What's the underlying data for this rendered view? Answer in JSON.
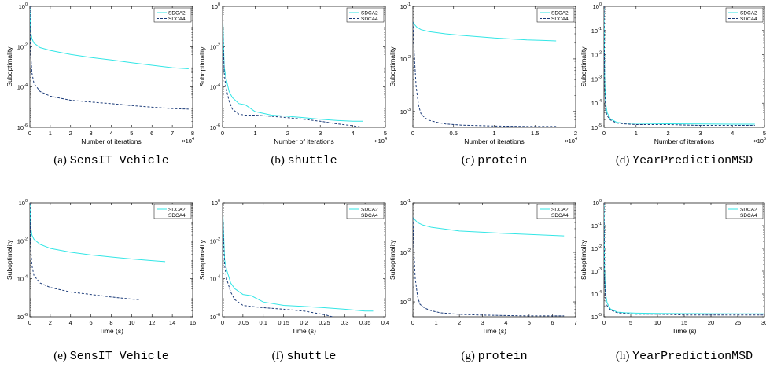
{
  "colors": {
    "sdca2": "#33e6e6",
    "sdca4": "#1a3a78",
    "axis": "#000000"
  },
  "legend": {
    "placement": "top-right"
  },
  "chart_data": [
    {
      "type": "line",
      "caption_label": "(a)",
      "caption_dataset": "SensIT Vehicle",
      "xlabel": "Number of iterations",
      "ylabel": "Suboptimality",
      "xscale": "linear",
      "yscale": "log",
      "xlim": [
        0,
        80000
      ],
      "ylim": [
        1e-06,
        1
      ],
      "xticks": [
        0,
        10000,
        20000,
        30000,
        40000,
        50000,
        60000,
        70000,
        80000
      ],
      "xtick_labels": [
        "0",
        "1",
        "2",
        "3",
        "4",
        "5",
        "6",
        "7",
        "8"
      ],
      "x_multiplier": "×10^4",
      "x_multiplier_base": "×10",
      "x_multiplier_exp": "4",
      "yticks": [
        1e-06,
        0.0001,
        0.01,
        1
      ],
      "ytick_exps": [
        "-6",
        "-4",
        "-2",
        "0"
      ],
      "series": [
        {
          "name": "SDCA2",
          "style": "solid",
          "x": [
            0,
            200,
            500,
            1000,
            2000,
            5000,
            10000,
            20000,
            30000,
            40000,
            50000,
            60000,
            70000,
            78000
          ],
          "y": [
            1,
            0.15,
            0.05,
            0.025,
            0.015,
            0.009,
            0.0065,
            0.0041,
            0.0029,
            0.0022,
            0.0016,
            0.0012,
            0.0009,
            0.0008
          ]
        },
        {
          "name": "SDCA4",
          "style": "dashed",
          "x": [
            0,
            200,
            500,
            1000,
            2000,
            5000,
            10000,
            20000,
            30000,
            40000,
            50000,
            60000,
            70000,
            78000
          ],
          "y": [
            1,
            0.02,
            0.003,
            0.0005,
            0.00015,
            6e-05,
            3.5e-05,
            2.2e-05,
            1.8e-05,
            1.5e-05,
            1.2e-05,
            1e-05,
            8.5e-06,
            8e-06
          ]
        }
      ]
    },
    {
      "type": "line",
      "caption_label": "(b)",
      "caption_dataset": "shuttle",
      "xlabel": "Number of iterations",
      "ylabel": "Suboptimality",
      "xscale": "linear",
      "yscale": "log",
      "xlim": [
        0,
        50000
      ],
      "ylim": [
        1e-06,
        1
      ],
      "xticks": [
        0,
        10000,
        20000,
        30000,
        40000,
        50000
      ],
      "xtick_labels": [
        "0",
        "1",
        "2",
        "3",
        "4",
        "5"
      ],
      "x_multiplier": "×10^4",
      "x_multiplier_base": "×10",
      "x_multiplier_exp": "4",
      "yticks": [
        1e-06,
        0.0001,
        0.01,
        1
      ],
      "ytick_exps": [
        "-6",
        "-4",
        "-2",
        "0"
      ],
      "series": [
        {
          "name": "SDCA2",
          "style": "solid",
          "x": [
            0,
            200,
            500,
            1000,
            2000,
            3000,
            5000,
            7000,
            10000,
            15000,
            20000,
            25000,
            30000,
            35000,
            40000,
            43000
          ],
          "y": [
            1,
            0.05,
            0.001,
            0.0003,
            6e-05,
            3e-05,
            1.5e-05,
            1.3e-05,
            6e-06,
            4e-06,
            3.5e-06,
            3e-06,
            2.5e-06,
            2.2e-06,
            2e-06,
            2e-06
          ]
        },
        {
          "name": "SDCA4",
          "style": "dashed",
          "x": [
            0,
            200,
            500,
            1000,
            2000,
            3000,
            5000,
            7000,
            10000,
            15000,
            20000,
            25000,
            30000,
            35000,
            40000,
            43000
          ],
          "y": [
            1,
            0.02,
            0.0005,
            0.0001,
            2e-05,
            8e-06,
            4.5e-06,
            4e-06,
            4e-06,
            3.5e-06,
            3e-06,
            2.5e-06,
            2e-06,
            1.5e-06,
            1.2e-06,
            1e-06
          ]
        }
      ]
    },
    {
      "type": "line",
      "caption_label": "(c)",
      "caption_dataset": "protein",
      "xlabel": "Number of iterations",
      "ylabel": "Suboptimality",
      "xscale": "linear",
      "yscale": "log",
      "xlim": [
        0,
        20000
      ],
      "ylim": [
        0.0005,
        0.1
      ],
      "xticks": [
        0,
        5000,
        10000,
        15000,
        20000
      ],
      "xtick_labels": [
        "0",
        "0.5",
        "1",
        "1.5",
        "2"
      ],
      "x_multiplier": "×10^4",
      "x_multiplier_base": "×10",
      "x_multiplier_exp": "4",
      "yticks": [
        0.001,
        0.01,
        0.1
      ],
      "ytick_exps": [
        "-3",
        "-2",
        "-1"
      ],
      "series": [
        {
          "name": "SDCA2",
          "style": "solid",
          "x": [
            0,
            200,
            500,
            1000,
            2000,
            4000,
            6000,
            8000,
            10000,
            12000,
            14000,
            16000,
            17600
          ],
          "y": [
            0.05,
            0.045,
            0.04,
            0.036,
            0.033,
            0.03,
            0.028,
            0.0265,
            0.025,
            0.024,
            0.023,
            0.0225,
            0.022
          ]
        },
        {
          "name": "SDCA4",
          "style": "dashed",
          "x": [
            0,
            200,
            400,
            700,
            1000,
            1500,
            2000,
            3000,
            4000,
            6000,
            8000,
            10000,
            14000,
            17600
          ],
          "y": [
            0.05,
            0.01,
            0.003,
            0.0013,
            0.0009,
            0.00075,
            0.00068,
            0.00062,
            0.00058,
            0.00055,
            0.00054,
            0.00053,
            0.00052,
            0.00052
          ]
        }
      ]
    },
    {
      "type": "line",
      "caption_label": "(d)",
      "caption_dataset": "YearPredictionMSD",
      "xlabel": "Number of iterations",
      "ylabel": "Suboptimality",
      "xscale": "linear",
      "yscale": "log",
      "xlim": [
        0,
        500000
      ],
      "ylim": [
        1e-05,
        1
      ],
      "xticks": [
        0,
        100000,
        200000,
        300000,
        400000,
        500000
      ],
      "xtick_labels": [
        "0",
        "1",
        "2",
        "3",
        "4",
        "5"
      ],
      "x_multiplier": "×10^5",
      "x_multiplier_base": "×10",
      "x_multiplier_exp": "5",
      "yticks": [
        1e-05,
        0.0001,
        0.001,
        0.01,
        0.1,
        1
      ],
      "ytick_exps": [
        "-5",
        "-4",
        "-3",
        "-2",
        "-1",
        "0"
      ],
      "series": [
        {
          "name": "SDCA2",
          "style": "solid",
          "x": [
            0,
            2000,
            5000,
            10000,
            20000,
            40000,
            60000,
            100000,
            200000,
            300000,
            400000,
            470000
          ],
          "y": [
            1,
            0.001,
            0.0001,
            4e-05,
            2.2e-05,
            1.6e-05,
            1.5e-05,
            1.45e-05,
            1.4e-05,
            1.38e-05,
            1.35e-05,
            1.35e-05
          ]
        },
        {
          "name": "SDCA4",
          "style": "dashed",
          "x": [
            0,
            2000,
            5000,
            10000,
            20000,
            40000,
            60000,
            100000,
            200000,
            300000,
            400000,
            470000
          ],
          "y": [
            1,
            0.0005,
            5e-05,
            3e-05,
            2e-05,
            1.5e-05,
            1.4e-05,
            1.3e-05,
            1.3e-05,
            1.2e-05,
            1.2e-05,
            1.2e-05
          ]
        }
      ]
    },
    {
      "type": "line",
      "caption_label": "(e)",
      "caption_dataset": "SensIT Vehicle",
      "xlabel": "Time (s)",
      "ylabel": "Suboptimality",
      "xscale": "linear",
      "yscale": "log",
      "xlim": [
        0,
        16
      ],
      "ylim": [
        1e-06,
        1
      ],
      "xticks": [
        0,
        2,
        4,
        6,
        8,
        10,
        12,
        14,
        16
      ],
      "xtick_labels": [
        "0",
        "2",
        "4",
        "6",
        "8",
        "10",
        "12",
        "14",
        "16"
      ],
      "x_multiplier": "",
      "x_multiplier_base": "",
      "x_multiplier_exp": "",
      "yticks": [
        1e-06,
        0.0001,
        0.01,
        1
      ],
      "ytick_exps": [
        "-6",
        "-4",
        "-2",
        "0"
      ],
      "series": [
        {
          "name": "SDCA2",
          "style": "solid",
          "x": [
            0,
            0.05,
            0.1,
            0.2,
            0.4,
            1,
            2,
            4,
            6,
            8,
            10,
            12,
            13.3
          ],
          "y": [
            1,
            0.15,
            0.05,
            0.02,
            0.012,
            0.0065,
            0.004,
            0.0025,
            0.0018,
            0.0014,
            0.0011,
            0.0009,
            0.0008
          ]
        },
        {
          "name": "SDCA4",
          "style": "dashed",
          "x": [
            0,
            0.05,
            0.1,
            0.2,
            0.4,
            1,
            2,
            4,
            6,
            8,
            10,
            10.8
          ],
          "y": [
            1,
            0.02,
            0.003,
            0.0005,
            0.00015,
            6e-05,
            3.5e-05,
            2e-05,
            1.5e-05,
            1.1e-05,
            8.5e-06,
            8e-06
          ]
        }
      ]
    },
    {
      "type": "line",
      "caption_label": "(f)",
      "caption_dataset": "shuttle",
      "xlabel": "Time (s)",
      "ylabel": "Suboptimality",
      "xscale": "linear",
      "yscale": "log",
      "xlim": [
        0,
        0.4
      ],
      "ylim": [
        1e-06,
        1
      ],
      "xticks": [
        0,
        0.05,
        0.1,
        0.15,
        0.2,
        0.25,
        0.3,
        0.35,
        0.4
      ],
      "xtick_labels": [
        "0",
        "0.05",
        "0.1",
        "0.15",
        "0.2",
        "0.25",
        "0.3",
        "0.35",
        "0.4"
      ],
      "x_multiplier": "",
      "x_multiplier_base": "",
      "x_multiplier_exp": "",
      "yticks": [
        1e-06,
        0.0001,
        0.01,
        1
      ],
      "ytick_exps": [
        "-6",
        "-4",
        "-2",
        "0"
      ],
      "series": [
        {
          "name": "SDCA2",
          "style": "solid",
          "x": [
            0,
            0.002,
            0.005,
            0.01,
            0.02,
            0.03,
            0.05,
            0.07,
            0.1,
            0.15,
            0.2,
            0.25,
            0.3,
            0.35,
            0.37
          ],
          "y": [
            1,
            0.05,
            0.001,
            0.0003,
            6e-05,
            3e-05,
            1.5e-05,
            1.3e-05,
            6e-06,
            4e-06,
            3.5e-06,
            3e-06,
            2.5e-06,
            2e-06,
            2e-06
          ]
        },
        {
          "name": "SDCA4",
          "style": "dashed",
          "x": [
            0,
            0.002,
            0.005,
            0.01,
            0.02,
            0.03,
            0.05,
            0.07,
            0.1,
            0.15,
            0.2,
            0.25,
            0.27
          ],
          "y": [
            1,
            0.02,
            0.0005,
            0.0001,
            2e-05,
            8e-06,
            4e-06,
            3.5e-06,
            3e-06,
            2.5e-06,
            2e-06,
            1.3e-06,
            1e-06
          ]
        }
      ]
    },
    {
      "type": "line",
      "caption_label": "(g)",
      "caption_dataset": "protein",
      "xlabel": "Time (s)",
      "ylabel": "Suboptimality",
      "xscale": "linear",
      "yscale": "log",
      "xlim": [
        0,
        7
      ],
      "ylim": [
        0.0005,
        0.1
      ],
      "xticks": [
        0,
        1,
        2,
        3,
        4,
        5,
        6,
        7
      ],
      "xtick_labels": [
        "0",
        "1",
        "2",
        "3",
        "4",
        "5",
        "6",
        "7"
      ],
      "x_multiplier": "",
      "x_multiplier_base": "",
      "x_multiplier_exp": "",
      "yticks": [
        0.001,
        0.01,
        0.1
      ],
      "ytick_exps": [
        "-3",
        "-2",
        "-1"
      ],
      "series": [
        {
          "name": "SDCA2",
          "style": "solid",
          "x": [
            0,
            0.1,
            0.2,
            0.4,
            0.8,
            1.5,
            2,
            3,
            4,
            5,
            6,
            6.5
          ],
          "y": [
            0.05,
            0.045,
            0.04,
            0.036,
            0.032,
            0.029,
            0.027,
            0.0255,
            0.024,
            0.023,
            0.022,
            0.0215
          ]
        },
        {
          "name": "SDCA4",
          "style": "dashed",
          "x": [
            0,
            0.05,
            0.1,
            0.2,
            0.3,
            0.5,
            0.8,
            1.2,
            2,
            3,
            4,
            5,
            6,
            6.5
          ],
          "y": [
            0.05,
            0.01,
            0.003,
            0.0013,
            0.0009,
            0.00075,
            0.00066,
            0.0006,
            0.00056,
            0.00054,
            0.00053,
            0.00052,
            0.00052,
            0.00052
          ]
        }
      ]
    },
    {
      "type": "line",
      "caption_label": "(h)",
      "caption_dataset": "YearPredictionMSD",
      "xlabel": "Time (s)",
      "ylabel": "Suboptimality",
      "xscale": "linear",
      "yscale": "log",
      "xlim": [
        0,
        30
      ],
      "ylim": [
        1e-05,
        1
      ],
      "xticks": [
        0,
        5,
        10,
        15,
        20,
        25,
        30
      ],
      "xtick_labels": [
        "0",
        "5",
        "10",
        "15",
        "20",
        "25",
        "30"
      ],
      "x_multiplier": "",
      "x_multiplier_base": "",
      "x_multiplier_exp": "",
      "yticks": [
        1e-05,
        0.0001,
        0.001,
        0.01,
        0.1,
        1
      ],
      "ytick_exps": [
        "-5",
        "-4",
        "-3",
        "-2",
        "-1",
        "0"
      ],
      "series": [
        {
          "name": "SDCA2",
          "style": "solid",
          "x": [
            0,
            0.1,
            0.3,
            0.6,
            1.2,
            2.5,
            4,
            6,
            10,
            15,
            20,
            25,
            30
          ],
          "y": [
            1,
            0.001,
            0.0001,
            4e-05,
            2.2e-05,
            1.6e-05,
            1.5e-05,
            1.45e-05,
            1.4e-05,
            1.38e-05,
            1.36e-05,
            1.35e-05,
            1.35e-05
          ]
        },
        {
          "name": "SDCA4",
          "style": "dashed",
          "x": [
            0,
            0.1,
            0.3,
            0.6,
            1.2,
            2.5,
            4,
            6,
            10,
            15,
            20,
            25,
            30
          ],
          "y": [
            1,
            0.0005,
            5e-05,
            3e-05,
            2e-05,
            1.5e-05,
            1.4e-05,
            1.3e-05,
            1.3e-05,
            1.2e-05,
            1.2e-05,
            1.2e-05,
            1.2e-05
          ]
        }
      ]
    }
  ]
}
